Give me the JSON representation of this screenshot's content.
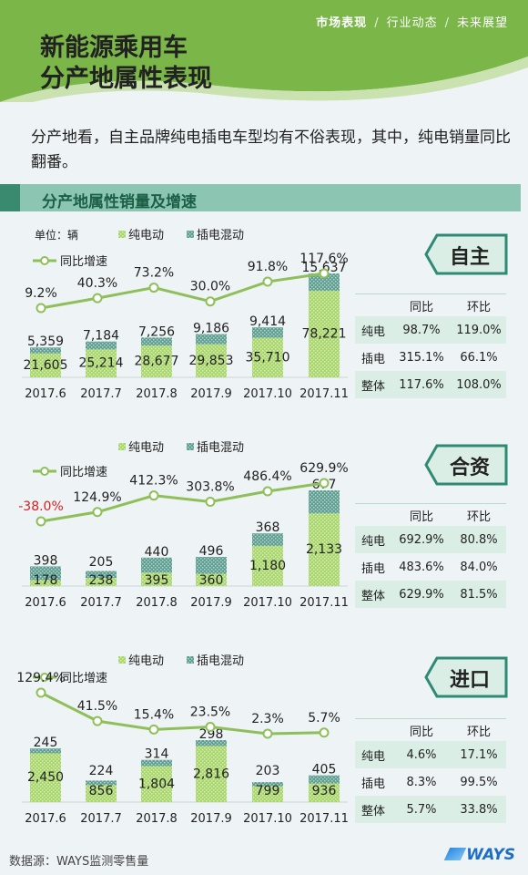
{
  "header": {
    "nav": [
      "市场表现",
      "行业动态",
      "未来展望"
    ],
    "title_lines": [
      "新能源乘用车",
      "分产地属性表现"
    ]
  },
  "intro": "分产地看，自主品牌纯电插电车型均有不俗表现，其中，纯电销量同比翻番。",
  "section_title": "分产地属性销量及增速",
  "unit_label": "单位：辆",
  "legend": {
    "bev": "纯电动",
    "phev": "插电混动",
    "growth": "同比增速"
  },
  "table_headers": [
    "同比",
    "环比"
  ],
  "colors": {
    "accent": "#7ab648",
    "bev": "#a9d66a",
    "phev": "#5e9f91",
    "line": "#8fbf5a",
    "negative": "#d81e1e",
    "teal": "#3a8a6f"
  },
  "chart_data": [
    {
      "type": "bar",
      "name": "自主",
      "categories": [
        "2017.6",
        "2017.7",
        "2017.8",
        "2017.9",
        "2017.10",
        "2017.11"
      ],
      "series": [
        {
          "name": "纯电动",
          "values": [
            21605,
            25214,
            28677,
            29853,
            35710,
            78221
          ]
        },
        {
          "name": "插电混动",
          "values": [
            5359,
            7184,
            7256,
            9186,
            9414,
            15637
          ]
        },
        {
          "name": "同比增速",
          "values": [
            "9.2%",
            "40.3%",
            "73.2%",
            "30.0%",
            "91.8%",
            "117.6%"
          ]
        }
      ],
      "table": [
        {
          "label": "纯电",
          "yoy": "98.7%",
          "mom": "119.0%"
        },
        {
          "label": "插电",
          "yoy": "315.1%",
          "mom": "66.1%"
        },
        {
          "label": "整体",
          "yoy": "117.6%",
          "mom": "108.0%"
        }
      ]
    },
    {
      "type": "bar",
      "name": "合资",
      "categories": [
        "2017.6",
        "2017.7",
        "2017.8",
        "2017.9",
        "2017.10",
        "2017.11"
      ],
      "series": [
        {
          "name": "纯电动",
          "values": [
            178,
            238,
            395,
            360,
            1180,
            2133
          ]
        },
        {
          "name": "插电混动",
          "values": [
            398,
            205,
            440,
            496,
            368,
            677
          ]
        },
        {
          "name": "同比增速",
          "values": [
            "-38.0%",
            "124.9%",
            "412.3%",
            "303.8%",
            "486.4%",
            "629.9%"
          ]
        }
      ],
      "table": [
        {
          "label": "纯电",
          "yoy": "692.9%",
          "mom": "80.8%"
        },
        {
          "label": "插电",
          "yoy": "483.6%",
          "mom": "84.0%"
        },
        {
          "label": "整体",
          "yoy": "629.9%",
          "mom": "81.5%"
        }
      ]
    },
    {
      "type": "bar",
      "name": "进口",
      "categories": [
        "2017.6",
        "2017.7",
        "2017.8",
        "2017.9",
        "2017.10",
        "2017.11"
      ],
      "series": [
        {
          "name": "纯电动",
          "values": [
            2450,
            856,
            1804,
            2816,
            799,
            936
          ]
        },
        {
          "name": "插电混动",
          "values": [
            245,
            224,
            314,
            298,
            203,
            405
          ]
        },
        {
          "name": "同比增速",
          "values": [
            "129.4%",
            "41.5%",
            "15.4%",
            "23.5%",
            "2.3%",
            "5.7%"
          ]
        }
      ],
      "table": [
        {
          "label": "纯电",
          "yoy": "4.6%",
          "mom": "17.1%"
        },
        {
          "label": "插电",
          "yoy": "8.3%",
          "mom": "99.5%"
        },
        {
          "label": "整体",
          "yoy": "5.7%",
          "mom": "33.8%"
        }
      ]
    }
  ],
  "footer": {
    "source": "数据源：WAYS监测零售量",
    "logo": "WAYS"
  }
}
